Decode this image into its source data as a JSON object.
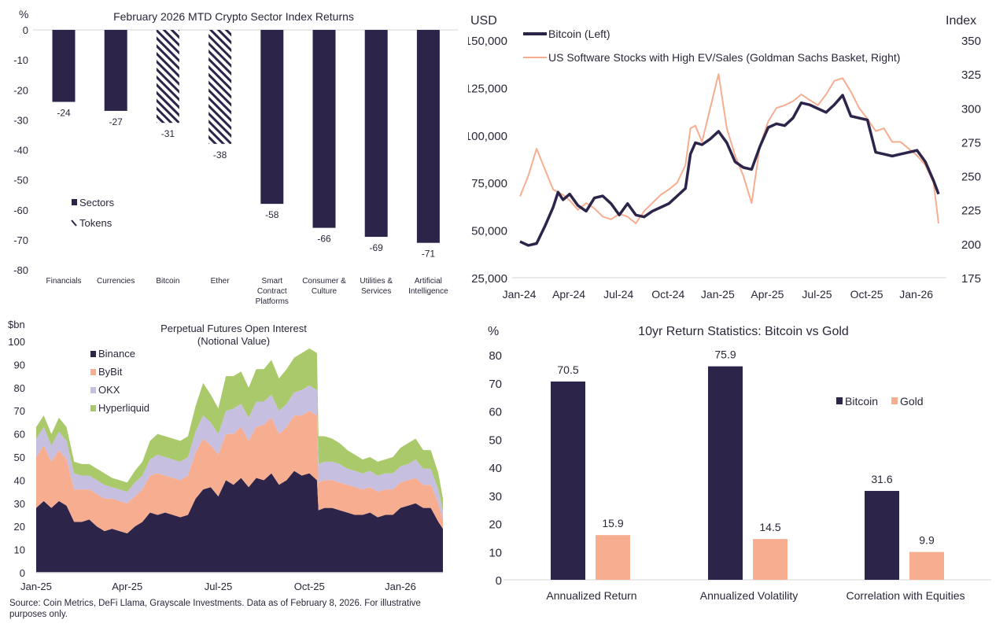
{
  "colors": {
    "navy": "#2d2449",
    "salmon": "#f7ad90",
    "lavender": "#c7bfe0",
    "green": "#a9c96b",
    "grid": "#e3e3e3"
  },
  "source_note": "Source: Coin Metrics, DeFi Llama, Grayscale Investments. Data as of February 8, 2026. For illustrative purposes only.",
  "chart_data": [
    {
      "id": "sector-returns",
      "type": "bar",
      "title": "February 2026 MTD Crypto Sector Index Returns",
      "ylabel": "%",
      "xlabel": "",
      "ylim": [
        -80,
        0
      ],
      "yticks": [
        0,
        -10,
        -20,
        -30,
        -40,
        -50,
        -60,
        -70,
        -80
      ],
      "categories": [
        "Financials",
        "Currencies",
        "Bitcoin",
        "Ether",
        "Smart Contract Platforms",
        "Consumer & Culture",
        "Utilities & Services",
        "Artificial Intelligence"
      ],
      "category_lines": [
        [
          "Financials"
        ],
        [
          "Currencies"
        ],
        [
          "Bitcoin"
        ],
        [
          "Ether"
        ],
        [
          "Smart",
          "Contract",
          "Platforms"
        ],
        [
          "Consumer &",
          "Culture"
        ],
        [
          "Utilities &",
          "Services"
        ],
        [
          "Artificial",
          "Intelligence"
        ]
      ],
      "values": [
        -24,
        -27,
        -31,
        -38,
        -58,
        -66,
        -69,
        -71
      ],
      "data_labels": [
        "-24",
        "-27",
        "-31",
        "-38",
        "-58",
        "-66",
        "-69",
        "-71"
      ],
      "kind": [
        "Sectors",
        "Sectors",
        "Tokens",
        "Tokens",
        "Sectors",
        "Sectors",
        "Sectors",
        "Sectors"
      ],
      "legend": [
        {
          "name": "Sectors",
          "style": "solid"
        },
        {
          "name": "Tokens",
          "style": "hatched"
        }
      ],
      "legend_position": "left-middle"
    },
    {
      "id": "btc-vs-software",
      "type": "line",
      "title": "",
      "ylabel_left": "USD",
      "ylabel_right": "Index",
      "ylim_left": [
        25000,
        150000
      ],
      "ylim_right": [
        175,
        350
      ],
      "yticks_left": [
        "25,000",
        "50,000",
        "75,000",
        "100,000",
        "125,000",
        "150,000"
      ],
      "yticks_right": [
        "175",
        "200",
        "225",
        "250",
        "275",
        "300",
        "325",
        "350"
      ],
      "x_ticks": [
        "Jan-24",
        "Apr-24",
        "Jul-24",
        "Oct-24",
        "Jan-25",
        "Apr-25",
        "Jul-25",
        "Oct-25",
        "Jan-26"
      ],
      "x_range": [
        "2024-01",
        "2026-02"
      ],
      "legend_position": "top-left",
      "series": [
        {
          "name": "Bitcoin (Left)",
          "axis": "left",
          "x": [
            0,
            0.5,
            1,
            1.5,
            2,
            2.3,
            2.6,
            3,
            3.5,
            4,
            4.5,
            5,
            5.5,
            6,
            6.5,
            7,
            7.5,
            8,
            8.5,
            9,
            9.5,
            10,
            10.3,
            10.6,
            11,
            11.5,
            12,
            12.5,
            13,
            13.5,
            14,
            14.5,
            15,
            15.5,
            16,
            16.5,
            17,
            17.5,
            18,
            18.5,
            19,
            19.5,
            20,
            20.5,
            21,
            21.5,
            22,
            22.5,
            23,
            23.5,
            24,
            24.5,
            25,
            25.3
          ],
          "values": [
            44000,
            42000,
            43000,
            52000,
            62000,
            70000,
            66000,
            69000,
            63000,
            60000,
            67000,
            68000,
            64000,
            58000,
            64000,
            58000,
            57000,
            60000,
            62000,
            64000,
            68000,
            72000,
            90000,
            96000,
            95000,
            98000,
            102000,
            96000,
            86000,
            83000,
            82000,
            94000,
            104000,
            106000,
            105000,
            109000,
            117000,
            116000,
            114000,
            112000,
            116000,
            121000,
            110000,
            109000,
            108000,
            91000,
            90000,
            89000,
            90000,
            91000,
            92000,
            86000,
            76000,
            69000
          ]
        },
        {
          "name": "US Software Stocks with High EV/Sales (Goldman Sachs Basket, Right)",
          "axis": "right",
          "x": [
            0,
            0.5,
            1,
            1.5,
            2,
            2.3,
            2.6,
            3,
            3.5,
            4,
            4.5,
            5,
            5.5,
            6,
            6.5,
            7,
            7.5,
            8,
            8.5,
            9,
            9.5,
            10,
            10.3,
            10.6,
            11,
            11.5,
            12,
            12.5,
            13,
            13.5,
            14,
            14.5,
            15,
            15.5,
            16,
            16.5,
            17,
            17.5,
            18,
            18.5,
            19,
            19.5,
            20,
            20.5,
            21,
            21.5,
            22,
            22.5,
            23,
            23.5,
            24,
            24.5,
            25,
            25.3
          ],
          "values": [
            235,
            250,
            270,
            255,
            240,
            238,
            236,
            232,
            225,
            230,
            226,
            220,
            218,
            222,
            220,
            215,
            224,
            230,
            236,
            240,
            245,
            258,
            285,
            287,
            275,
            300,
            325,
            285,
            265,
            250,
            230,
            272,
            290,
            300,
            302,
            305,
            310,
            306,
            302,
            310,
            320,
            322,
            312,
            300,
            292,
            283,
            285,
            275,
            275,
            270,
            265,
            258,
            245,
            215
          ]
        }
      ]
    },
    {
      "id": "perp-open-interest",
      "type": "area",
      "stacked": true,
      "title": "Perpetual Futures Open Interest",
      "subtitle": "(Notional Value)",
      "ylabel": "$bn",
      "ylim": [
        0,
        100
      ],
      "yticks": [
        0,
        10,
        20,
        30,
        40,
        50,
        60,
        70,
        80,
        90,
        100
      ],
      "x_ticks": [
        "Jan-25",
        "Apr-25",
        "Jul-25",
        "Oct-25",
        "Jan-26"
      ],
      "x_range": [
        "2025-01",
        "2026-02"
      ],
      "legend_position": "top-left",
      "x": [
        0,
        0.25,
        0.5,
        0.75,
        1,
        1.25,
        1.5,
        1.75,
        2,
        2.25,
        2.5,
        2.75,
        3,
        3.25,
        3.5,
        3.75,
        4,
        4.25,
        4.5,
        4.75,
        5,
        5.25,
        5.5,
        5.75,
        6,
        6.25,
        6.5,
        6.75,
        7,
        7.25,
        7.5,
        7.75,
        8,
        8.25,
        8.5,
        8.75,
        9,
        9.25,
        9.3,
        9.5,
        9.75,
        10,
        10.25,
        10.5,
        10.75,
        11,
        11.25,
        11.5,
        11.75,
        12,
        12.25,
        12.5,
        12.75,
        13,
        13.25,
        13.4
      ],
      "series": [
        {
          "name": "Binance",
          "values": [
            28,
            31,
            28,
            31,
            29,
            22,
            22,
            23,
            20,
            18,
            19,
            18,
            17,
            20,
            22,
            26,
            25,
            26,
            25,
            24,
            25,
            32,
            36,
            37,
            33,
            40,
            38,
            41,
            37,
            41,
            40,
            43,
            38,
            40,
            44,
            42,
            43,
            40,
            27,
            28,
            28,
            27,
            26,
            25,
            25,
            26,
            24,
            25,
            25,
            28,
            29,
            30,
            28,
            28,
            22,
            19
          ]
        },
        {
          "name": "ByBit",
          "values": [
            22,
            24,
            20,
            22,
            20,
            14,
            14,
            13,
            14,
            14,
            13,
            13,
            13,
            13,
            14,
            16,
            18,
            16,
            16,
            16,
            17,
            20,
            22,
            18,
            18,
            20,
            22,
            22,
            20,
            22,
            24,
            24,
            22,
            23,
            24,
            26,
            27,
            28,
            12,
            12,
            12,
            12,
            12,
            12,
            11,
            11,
            11,
            11,
            11,
            11,
            11,
            11,
            10,
            10,
            8,
            4
          ]
        },
        {
          "name": "OKX",
          "values": [
            8,
            8,
            7,
            8,
            8,
            7,
            6,
            6,
            6,
            6,
            5,
            5,
            5,
            6,
            6,
            7,
            8,
            8,
            8,
            8,
            8,
            9,
            10,
            10,
            9,
            10,
            11,
            10,
            10,
            11,
            10,
            10,
            10,
            10,
            10,
            11,
            11,
            11,
            8,
            8,
            8,
            8,
            7,
            7,
            7,
            7,
            7,
            7,
            7,
            7,
            7,
            8,
            7,
            7,
            6,
            4
          ]
        },
        {
          "name": "Hyperliquid",
          "values": [
            5,
            5,
            5,
            6,
            6,
            5,
            5,
            5,
            5,
            5,
            4,
            4,
            4,
            5,
            6,
            8,
            9,
            9,
            9,
            9,
            9,
            11,
            14,
            12,
            11,
            15,
            14,
            14,
            13,
            14,
            14,
            15,
            14,
            15,
            15,
            16,
            16,
            16,
            12,
            11,
            10,
            9,
            8,
            7,
            6,
            6,
            6,
            6,
            7,
            8,
            9,
            9,
            8,
            8,
            7,
            5
          ]
        }
      ]
    },
    {
      "id": "btc-vs-gold",
      "type": "bar",
      "title": "10yr Return Statistics: Bitcoin vs Gold",
      "ylabel": "%",
      "xlabel": "",
      "ylim": [
        0,
        80
      ],
      "yticks": [
        0,
        10,
        20,
        30,
        40,
        50,
        60,
        70,
        80
      ],
      "categories": [
        "Annualized Return",
        "Annualized Volatility",
        "Correlation with Equities"
      ],
      "series": [
        {
          "name": "Bitcoin",
          "values": [
            70.5,
            75.9,
            31.6
          ],
          "labels": [
            "70.5",
            "75.9",
            "31.6"
          ]
        },
        {
          "name": "Gold",
          "values": [
            15.9,
            14.5,
            9.9
          ],
          "labels": [
            "15.9",
            "14.5",
            "9.9"
          ]
        }
      ],
      "legend_position": "right"
    }
  ]
}
